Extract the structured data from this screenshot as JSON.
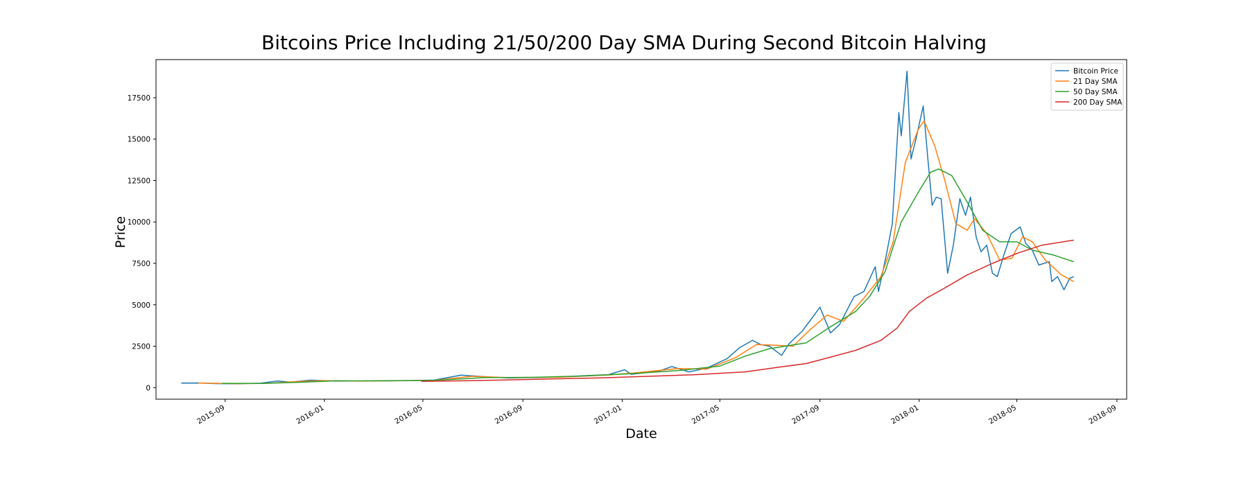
{
  "chart_data": {
    "type": "line",
    "title": "Bitcoins Price Including 21/50/200 Day SMA During Second Bitcoin Halving",
    "xlabel": "Date",
    "ylabel": "Price",
    "xlim": [
      "2015-06-08",
      "2018-09-13"
    ],
    "ylim": [
      -700,
      19800
    ],
    "x_ticks": [
      "2015-09",
      "2016-01",
      "2016-05",
      "2016-09",
      "2017-01",
      "2017-05",
      "2017-09",
      "2018-01",
      "2018-05",
      "2018-09"
    ],
    "y_ticks": [
      0,
      2500,
      5000,
      7500,
      10000,
      12500,
      15000,
      17500
    ],
    "grid": false,
    "legend_position": "top-right",
    "series": [
      {
        "name": "Bitcoin Price",
        "color": "#1f77b4",
        "points": [
          [
            "2015-07-09",
            270
          ],
          [
            "2015-08-01",
            280
          ],
          [
            "2015-08-20",
            240
          ],
          [
            "2015-09-15",
            235
          ],
          [
            "2015-10-15",
            265
          ],
          [
            "2015-11-04",
            400
          ],
          [
            "2015-11-20",
            330
          ],
          [
            "2015-12-15",
            450
          ],
          [
            "2016-01-15",
            390
          ],
          [
            "2016-02-15",
            400
          ],
          [
            "2016-03-15",
            415
          ],
          [
            "2016-04-15",
            425
          ],
          [
            "2016-05-15",
            455
          ],
          [
            "2016-06-17",
            750
          ],
          [
            "2016-07-15",
            660
          ],
          [
            "2016-08-15",
            580
          ],
          [
            "2016-09-15",
            610
          ],
          [
            "2016-10-15",
            640
          ],
          [
            "2016-11-15",
            720
          ],
          [
            "2016-12-15",
            780
          ],
          [
            "2017-01-04",
            1080
          ],
          [
            "2017-01-12",
            800
          ],
          [
            "2017-02-15",
            1000
          ],
          [
            "2017-03-03",
            1270
          ],
          [
            "2017-03-24",
            950
          ],
          [
            "2017-04-15",
            1180
          ],
          [
            "2017-05-10",
            1750
          ],
          [
            "2017-05-25",
            2400
          ],
          [
            "2017-06-10",
            2850
          ],
          [
            "2017-06-20",
            2600
          ],
          [
            "2017-07-01",
            2500
          ],
          [
            "2017-07-16",
            1950
          ],
          [
            "2017-07-25",
            2650
          ],
          [
            "2017-08-10",
            3400
          ],
          [
            "2017-08-20",
            4050
          ],
          [
            "2017-09-01",
            4850
          ],
          [
            "2017-09-14",
            3300
          ],
          [
            "2017-09-25",
            3800
          ],
          [
            "2017-10-13",
            5500
          ],
          [
            "2017-10-25",
            5800
          ],
          [
            "2017-11-08",
            7300
          ],
          [
            "2017-11-12",
            5800
          ],
          [
            "2017-11-22",
            8100
          ],
          [
            "2017-11-29",
            9900
          ],
          [
            "2017-12-07",
            16600
          ],
          [
            "2017-12-10",
            15200
          ],
          [
            "2017-12-17",
            19100
          ],
          [
            "2017-12-22",
            13800
          ],
          [
            "2017-12-28",
            15000
          ],
          [
            "2018-01-06",
            17000
          ],
          [
            "2018-01-12",
            13600
          ],
          [
            "2018-01-17",
            11000
          ],
          [
            "2018-01-22",
            11500
          ],
          [
            "2018-01-28",
            11400
          ],
          [
            "2018-02-05",
            6900
          ],
          [
            "2018-02-12",
            8600
          ],
          [
            "2018-02-20",
            11400
          ],
          [
            "2018-02-27",
            10400
          ],
          [
            "2018-03-05",
            11500
          ],
          [
            "2018-03-12",
            9100
          ],
          [
            "2018-03-18",
            8200
          ],
          [
            "2018-03-25",
            8600
          ],
          [
            "2018-04-01",
            6900
          ],
          [
            "2018-04-07",
            6700
          ],
          [
            "2018-04-15",
            8000
          ],
          [
            "2018-04-24",
            9300
          ],
          [
            "2018-05-05",
            9700
          ],
          [
            "2018-05-12",
            8700
          ],
          [
            "2018-05-20",
            8300
          ],
          [
            "2018-05-28",
            7400
          ],
          [
            "2018-06-10",
            7600
          ],
          [
            "2018-06-13",
            6400
          ],
          [
            "2018-06-20",
            6700
          ],
          [
            "2018-06-28",
            5900
          ],
          [
            "2018-07-05",
            6600
          ],
          [
            "2018-07-10",
            6700
          ]
        ]
      },
      {
        "name": "21 Day SMA",
        "color": "#ff7f0e",
        "points": [
          [
            "2015-07-30",
            275
          ],
          [
            "2015-09-15",
            240
          ],
          [
            "2015-10-20",
            250
          ],
          [
            "2015-11-25",
            360
          ],
          [
            "2015-12-31",
            420
          ],
          [
            "2016-02-15",
            390
          ],
          [
            "2016-04-15",
            420
          ],
          [
            "2016-05-15",
            440
          ],
          [
            "2016-06-30",
            680
          ],
          [
            "2016-08-15",
            600
          ],
          [
            "2016-10-15",
            630
          ],
          [
            "2016-12-15",
            760
          ],
          [
            "2017-01-15",
            880
          ],
          [
            "2017-03-10",
            1150
          ],
          [
            "2017-04-15",
            1120
          ],
          [
            "2017-05-20",
            1800
          ],
          [
            "2017-06-15",
            2600
          ],
          [
            "2017-07-10",
            2550
          ],
          [
            "2017-07-30",
            2500
          ],
          [
            "2017-08-20",
            3500
          ],
          [
            "2017-09-10",
            4380
          ],
          [
            "2017-09-30",
            4000
          ],
          [
            "2017-10-25",
            5400
          ],
          [
            "2017-11-15",
            6700
          ],
          [
            "2017-11-30",
            8800
          ],
          [
            "2017-12-15",
            13600
          ],
          [
            "2017-12-31",
            15600
          ],
          [
            "2018-01-07",
            16100
          ],
          [
            "2018-01-20",
            14600
          ],
          [
            "2018-02-01",
            12600
          ],
          [
            "2018-02-15",
            9900
          ],
          [
            "2018-03-01",
            9500
          ],
          [
            "2018-03-10",
            10200
          ],
          [
            "2018-03-25",
            9300
          ],
          [
            "2018-04-10",
            7700
          ],
          [
            "2018-04-25",
            7800
          ],
          [
            "2018-05-08",
            9100
          ],
          [
            "2018-05-20",
            8800
          ],
          [
            "2018-06-05",
            7700
          ],
          [
            "2018-06-25",
            6800
          ],
          [
            "2018-07-10",
            6400
          ]
        ]
      },
      {
        "name": "50 Day SMA",
        "color": "#2ca02c",
        "points": [
          [
            "2015-08-28",
            260
          ],
          [
            "2015-10-15",
            250
          ],
          [
            "2015-12-01",
            320
          ],
          [
            "2016-01-15",
            410
          ],
          [
            "2016-03-15",
            410
          ],
          [
            "2016-05-15",
            440
          ],
          [
            "2016-07-15",
            600
          ],
          [
            "2016-09-15",
            620
          ],
          [
            "2016-11-15",
            700
          ],
          [
            "2017-01-15",
            850
          ],
          [
            "2017-03-15",
            1050
          ],
          [
            "2017-05-01",
            1300
          ],
          [
            "2017-06-01",
            1900
          ],
          [
            "2017-07-01",
            2350
          ],
          [
            "2017-08-15",
            2700
          ],
          [
            "2017-09-15",
            3700
          ],
          [
            "2017-10-15",
            4600
          ],
          [
            "2017-11-01",
            5500
          ],
          [
            "2017-11-20",
            7000
          ],
          [
            "2017-12-10",
            10000
          ],
          [
            "2017-12-31",
            11800
          ],
          [
            "2018-01-15",
            13000
          ],
          [
            "2018-01-25",
            13200
          ],
          [
            "2018-02-10",
            12800
          ],
          [
            "2018-03-01",
            11200
          ],
          [
            "2018-03-20",
            9500
          ],
          [
            "2018-04-10",
            8800
          ],
          [
            "2018-05-01",
            8800
          ],
          [
            "2018-05-20",
            8300
          ],
          [
            "2018-06-15",
            8000
          ],
          [
            "2018-07-10",
            7600
          ]
        ]
      },
      {
        "name": "200 Day SMA",
        "color": "#d62728",
        "points": [
          [
            "2016-04-29",
            380
          ],
          [
            "2016-07-01",
            420
          ],
          [
            "2016-09-15",
            500
          ],
          [
            "2016-12-01",
            580
          ],
          [
            "2017-02-01",
            680
          ],
          [
            "2017-04-01",
            780
          ],
          [
            "2017-06-01",
            950
          ],
          [
            "2017-07-15",
            1250
          ],
          [
            "2017-08-15",
            1450
          ],
          [
            "2017-09-15",
            1850
          ],
          [
            "2017-10-15",
            2250
          ],
          [
            "2017-11-15",
            2850
          ],
          [
            "2017-12-05",
            3600
          ],
          [
            "2017-12-20",
            4600
          ],
          [
            "2018-01-10",
            5400
          ],
          [
            "2018-02-01",
            6000
          ],
          [
            "2018-03-01",
            6800
          ],
          [
            "2018-04-01",
            7500
          ],
          [
            "2018-05-01",
            8100
          ],
          [
            "2018-06-01",
            8600
          ],
          [
            "2018-07-10",
            8900
          ]
        ]
      }
    ]
  }
}
